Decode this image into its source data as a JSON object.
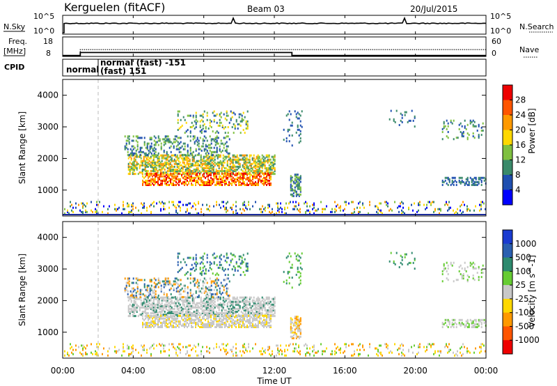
{
  "header": {
    "station": "Kerguelen (fitACF)",
    "beam": "Beam 03",
    "date": "20/Jul/2015"
  },
  "panel_labels": {
    "nsky": "N.Sky",
    "nsearch": "N.Search",
    "freq_line1": "Freq.",
    "freq_line2": "[MHz]",
    "nave": "Nave",
    "cpid": "CPID"
  },
  "chart_data": [
    {
      "type": "line",
      "name": "noise",
      "yticks_left": [
        "10^5",
        "10^0"
      ],
      "yticks_right": [
        "10^5",
        "10^0"
      ],
      "series": [
        {
          "name": "N.Sky",
          "style": "solid"
        },
        {
          "name": "N.Search",
          "style": "dotted"
        }
      ]
    },
    {
      "type": "line",
      "name": "frequency-nave",
      "yticks_left": [
        "18",
        "8"
      ],
      "yticks_right": [
        "60",
        "0"
      ],
      "series": [
        {
          "name": "Freq.",
          "style": "solid",
          "x_hours": [
            0,
            1,
            1,
            13,
            13,
            24
          ],
          "y": [
            8.5,
            8.5,
            10,
            10,
            8.5,
            8.5
          ]
        },
        {
          "name": "Nave",
          "style": "dotted",
          "x_hours": [
            0,
            1,
            1,
            13,
            13,
            24
          ],
          "y": [
            8.5,
            8.5,
            11.5,
            11.5,
            11.5,
            11.5
          ]
        }
      ]
    },
    {
      "type": "table",
      "name": "cpid",
      "labels": [
        "normal",
        "normal (fast) -151",
        "(fast) 151"
      ]
    },
    {
      "type": "heatmap",
      "name": "power",
      "ylabel": "Slant Range [km]",
      "ylim": [
        180,
        4500
      ],
      "yticks": [
        1000,
        2000,
        3000,
        4000
      ],
      "colorbar_label": "Power [dB]",
      "colorbar_ticks": [
        "4",
        "8",
        "12",
        "16",
        "20",
        "24",
        "28"
      ],
      "colors": [
        "#0000ff",
        "#1f4fb0",
        "#3a8a6a",
        "#7fc040",
        "#ffd800",
        "#ff9900",
        "#ff5500",
        "#ee0000"
      ]
    },
    {
      "type": "heatmap",
      "name": "velocity",
      "ylabel": "Slant Range [km]",
      "ylim": [
        180,
        4500
      ],
      "yticks": [
        1000,
        2000,
        3000,
        4000
      ],
      "colorbar_label": "Velocity [m s^-1]",
      "colorbar_ticks": [
        "1000",
        "500",
        "100",
        "25",
        "-25",
        "-100",
        "-500",
        "-1000"
      ],
      "colors": [
        "#1a3bd0",
        "#2a5fb0",
        "#2d8a6e",
        "#66cc33",
        "#c8c8c8",
        "#ffd800",
        "#ff9900",
        "#ff5500",
        "#ee0000"
      ]
    }
  ],
  "xaxis": {
    "label": "Time UT",
    "ticks": [
      "00:00",
      "04:00",
      "08:00",
      "12:00",
      "16:00",
      "20:00",
      "00:00"
    ],
    "xlim_hours": [
      0,
      24
    ]
  }
}
